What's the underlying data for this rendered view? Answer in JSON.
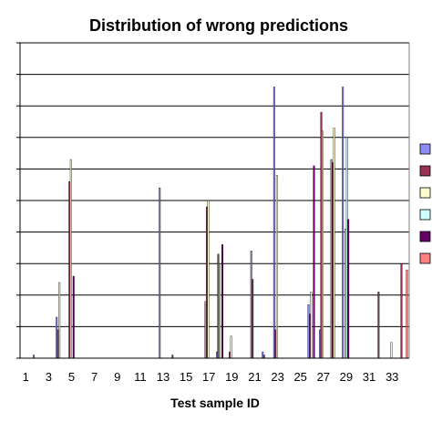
{
  "chart_data": {
    "type": "bar",
    "title": "Distribution of wrong predictions",
    "xlabel": "Test sample ID",
    "ylabel": "",
    "ylim": [
      0,
      100
    ],
    "grid": true,
    "legend_position": "right",
    "x_tick_labels": [
      "1",
      "3",
      "5",
      "7",
      "9",
      "11",
      "13",
      "15",
      "17",
      "19",
      "21",
      "23",
      "25",
      "27",
      "29",
      "31",
      "33"
    ],
    "categories": [
      1,
      2,
      3,
      4,
      5,
      6,
      7,
      8,
      9,
      10,
      11,
      12,
      13,
      14,
      15,
      16,
      17,
      18,
      19,
      20,
      21,
      22,
      23,
      24,
      25,
      26,
      27,
      28,
      29,
      30,
      31,
      32,
      33,
      34
    ],
    "series": [
      {
        "color": "#8c8cf2",
        "values": [
          0,
          1,
          0,
          13,
          0,
          0,
          0,
          0,
          0,
          0,
          0,
          0,
          54,
          0,
          0,
          0,
          18,
          2,
          0,
          0,
          34,
          2,
          86,
          0,
          0,
          17,
          9,
          63,
          86,
          0,
          0,
          0,
          0,
          0
        ]
      },
      {
        "color": "#993355",
        "values": [
          0,
          0,
          0,
          9,
          56,
          0,
          0,
          0,
          0,
          0,
          0,
          0,
          0,
          1,
          0,
          0,
          48,
          33,
          2,
          0,
          25,
          1,
          9,
          0,
          0,
          14,
          78,
          62,
          0,
          0,
          0,
          21,
          0,
          30
        ]
      },
      {
        "color": "#ffffcc",
        "values": [
          0,
          0,
          0,
          24,
          63,
          0,
          0,
          0,
          0,
          0,
          0,
          0,
          0,
          0,
          0,
          0,
          50,
          30,
          7,
          0,
          0,
          0,
          58,
          0,
          0,
          21,
          72,
          73,
          41,
          0,
          0,
          0,
          5,
          0
        ]
      },
      {
        "color": "#ccffff",
        "values": [
          0,
          0,
          0,
          0,
          0,
          0,
          0,
          0,
          0,
          0,
          0,
          0,
          0,
          0,
          0,
          0,
          0,
          0,
          0,
          0,
          0,
          0,
          0,
          0,
          0,
          0,
          0,
          0,
          70,
          0,
          0,
          0,
          0,
          0
        ]
      },
      {
        "color": "#660066",
        "values": [
          0,
          0,
          0,
          0,
          26,
          0,
          0,
          0,
          0,
          0,
          0,
          0,
          0,
          0,
          0,
          0,
          0,
          36,
          0,
          0,
          0,
          0,
          0,
          0,
          0,
          61,
          0,
          0,
          44,
          0,
          0,
          0,
          0,
          0
        ]
      },
      {
        "color": "#ff8080",
        "values": [
          0,
          0,
          0,
          0,
          0,
          0,
          0,
          0,
          0,
          0,
          0,
          0,
          0,
          0,
          0,
          0,
          0,
          0,
          0,
          0,
          0,
          0,
          0,
          0,
          0,
          0,
          0,
          0,
          0,
          0,
          0,
          0,
          0,
          28
        ]
      }
    ]
  }
}
